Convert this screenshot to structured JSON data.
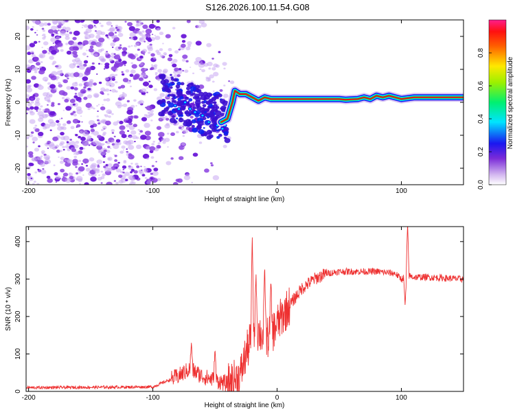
{
  "title": "S126.2026.100.11.54.G08",
  "chart_data": [
    {
      "type": "heatmap",
      "name": "spectrogram",
      "xlabel": "Height of straight line (km)",
      "ylabel": "Frequency (Hz)",
      "xlim": [
        -202,
        150
      ],
      "ylim": [
        -25,
        25
      ],
      "xticks": [
        -200,
        -100,
        0,
        100
      ],
      "yticks": [
        -20,
        -10,
        0,
        10,
        20
      ],
      "colorbar": {
        "label": "Normalized spectral amplitude",
        "range": [
          0,
          1
        ],
        "ticks": [
          0.0,
          0.2,
          0.4,
          0.6,
          0.8
        ]
      },
      "noise_region_x": [
        -202,
        -40
      ],
      "signal_track": {
        "x": [
          -45,
          -40,
          -36,
          -34,
          -30,
          -25,
          -20,
          -15,
          -10,
          -5,
          0,
          20,
          50,
          55,
          65,
          70,
          75,
          80,
          85,
          90,
          95,
          100,
          110,
          120,
          150
        ],
        "freq": [
          -6,
          -5,
          0,
          3.5,
          2.5,
          2.5,
          1.5,
          0.5,
          1.5,
          1.0,
          1.0,
          1.0,
          1.0,
          0.8,
          1.0,
          1.5,
          1.0,
          2.0,
          1.5,
          2.0,
          1.5,
          1.0,
          1.5,
          1.5,
          1.5
        ]
      }
    },
    {
      "type": "line",
      "name": "snr",
      "xlabel": "Height of straight line (km)",
      "ylabel": "SNR (10 * v/v)",
      "xlim": [
        -202,
        150
      ],
      "ylim": [
        0,
        440
      ],
      "xticks": [
        -200,
        -100,
        0,
        100
      ],
      "yticks": [
        0,
        100,
        200,
        300,
        400
      ],
      "color": "#ee3030",
      "trend": {
        "x": [
          -202,
          -100,
          -80,
          -70,
          -60,
          -50,
          -40,
          -30,
          -25,
          -20,
          -15,
          -10,
          -5,
          0,
          10,
          20,
          30,
          40,
          50,
          60,
          80,
          95,
          100,
          105,
          110,
          120,
          150
        ],
        "y": [
          10,
          12,
          40,
          60,
          40,
          30,
          20,
          40,
          100,
          150,
          160,
          140,
          150,
          180,
          230,
          275,
          300,
          315,
          320,
          320,
          320,
          315,
          300,
          310,
          305,
          305,
          300
        ]
      },
      "spikes": [
        {
          "x": -69,
          "y": 130
        },
        {
          "x": -50,
          "y": 115
        },
        {
          "x": -20,
          "y": 420
        },
        {
          "x": -17,
          "y": 320
        },
        {
          "x": -10,
          "y": 340
        },
        {
          "x": -5,
          "y": 300
        },
        {
          "x": 103,
          "y": 230
        },
        {
          "x": 105,
          "y": 450
        }
      ]
    }
  ]
}
